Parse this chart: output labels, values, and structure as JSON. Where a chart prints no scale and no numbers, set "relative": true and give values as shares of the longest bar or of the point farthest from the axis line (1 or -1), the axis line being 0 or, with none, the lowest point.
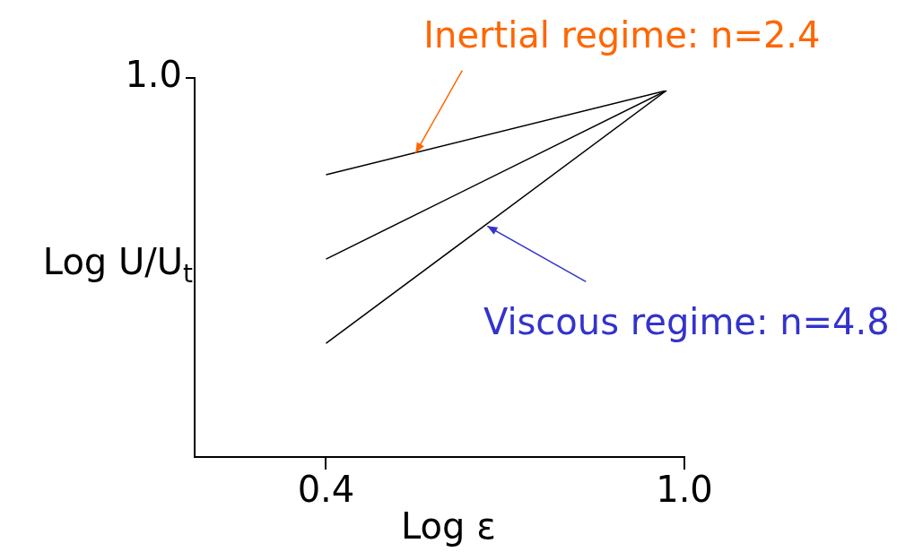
{
  "chart_data": {
    "type": "line",
    "relative": true,
    "xlabel": "Log ε",
    "ylabel": "Log U/U$_{t}$",
    "xlim": [
      0.18,
      1.0
    ],
    "xticks": [
      0.4,
      {
        "value": 1.0,
        "label": "1.0"
      }
    ],
    "series": [
      {
        "color": "#000000",
        "values": [
          0.77,
          1
        ]
      },
      {
        "color": "#000000",
        "values": [
          0.54,
          1
        ]
      },
      {
        "color": "#000000",
        "values": [
          0.31,
          1
        ]
      }
    ],
    "x": [
      0.4,
      0.97
    ],
    "annotations": [
      "1.0",
      {
        "text": "Inertial regime: n=2.4",
        "x": 0.55,
        "y": 0.83
      },
      {
        "text": "Viscous regime: n=4.8",
        "x": 0.67,
        "y": 0.63
      }
    ],
    "marker": "none",
    "line_style": "solid",
    "grid": false,
    "legend": false
  }
}
